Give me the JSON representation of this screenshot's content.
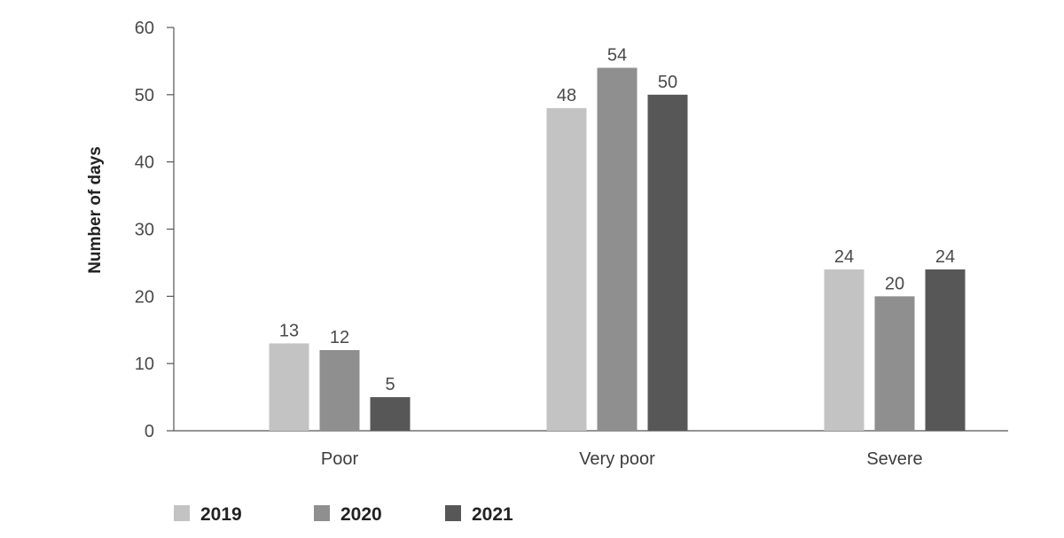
{
  "chart_data": {
    "type": "bar",
    "title": "",
    "xlabel": "",
    "ylabel": "Number of days",
    "ylim": [
      0,
      60
    ],
    "yticks": [
      0,
      10,
      20,
      30,
      40,
      50,
      60
    ],
    "categories": [
      "Poor",
      "Very poor",
      "Severe"
    ],
    "series": [
      {
        "name": "2019",
        "values": [
          13,
          48,
          24
        ],
        "color": "#c3c3c3"
      },
      {
        "name": "2020",
        "values": [
          12,
          54,
          20
        ],
        "color": "#8f8f8f"
      },
      {
        "name": "2021",
        "values": [
          5,
          50,
          24
        ],
        "color": "#575757"
      }
    ],
    "data_labels": true,
    "grid": false,
    "legend": "bottom-left"
  }
}
